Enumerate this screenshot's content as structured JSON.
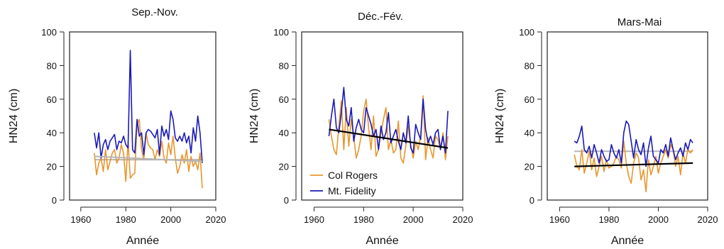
{
  "colors": {
    "col_rogers": "#e8962e",
    "mt_fidelity": "#1a1ab8",
    "trend": "#000000",
    "mean_line": "#b5b5b5"
  },
  "legend": {
    "items": [
      "Col Rogers",
      "Mt. Fidelity"
    ]
  },
  "chart_data": [
    {
      "type": "line",
      "title": "Sep.-Nov.",
      "xlabel": "Année",
      "ylabel": "HN24 (cm)",
      "xlim": [
        1955,
        2020
      ],
      "ylim": [
        0,
        100
      ],
      "xticks": [
        1960,
        1980,
        2000,
        2020
      ],
      "yticks": [
        0,
        20,
        40,
        60,
        80,
        100
      ],
      "series": [
        {
          "name": "Mt. Fidelity",
          "x": [
            1966,
            1967,
            1968,
            1969,
            1970,
            1971,
            1972,
            1973,
            1974,
            1975,
            1976,
            1977,
            1978,
            1979,
            1980,
            1981,
            1982,
            1983,
            1984,
            1985,
            1986,
            1987,
            1988,
            1989,
            1990,
            1991,
            1992,
            1993,
            1994,
            1995,
            1996,
            1997,
            1998,
            1999,
            2000,
            2001,
            2002,
            2003,
            2004,
            2005,
            2006,
            2007,
            2008,
            2009,
            2010,
            2011,
            2012,
            2013,
            2014
          ],
          "y": [
            40,
            31,
            40,
            25,
            33,
            36,
            30,
            35,
            37,
            39,
            30,
            35,
            34,
            38,
            33,
            31,
            89,
            30,
            28,
            48,
            38,
            40,
            27,
            40,
            42,
            41,
            39,
            37,
            42,
            27,
            44,
            38,
            42,
            36,
            53,
            48,
            37,
            35,
            38,
            35,
            40,
            34,
            38,
            28,
            43,
            35,
            50,
            40,
            22
          ]
        },
        {
          "name": "Col Rogers",
          "x": [
            1966,
            1967,
            1968,
            1969,
            1970,
            1971,
            1972,
            1973,
            1974,
            1975,
            1976,
            1977,
            1978,
            1979,
            1980,
            1981,
            1982,
            1983,
            1984,
            1985,
            1986,
            1987,
            1988,
            1989,
            1990,
            1991,
            1992,
            1993,
            1994,
            1995,
            1996,
            1997,
            1998,
            1999,
            2000,
            2001,
            2002,
            2003,
            2004,
            2005,
            2006,
            2007,
            2008,
            2009,
            2010,
            2011,
            2012,
            2013,
            2014
          ],
          "y": [
            28,
            15,
            22,
            25,
            17,
            30,
            18,
            23,
            28,
            30,
            22,
            25,
            33,
            28,
            11,
            35,
            13,
            15,
            16,
            45,
            48,
            30,
            24,
            40,
            33,
            31,
            30,
            24,
            30,
            26,
            35,
            25,
            22,
            34,
            27,
            38,
            25,
            16,
            20,
            27,
            22,
            30,
            17,
            26,
            20,
            23,
            18,
            28,
            7
          ]
        },
        {
          "name": "",
          "x": [
            1966,
            2014
          ],
          "y": [
            26,
            23
          ]
        },
        {
          "name": "",
          "x": [
            1966,
            2014
          ],
          "y": [
            24,
            24
          ]
        }
      ]
    },
    {
      "type": "line",
      "title": "Déc.-Fév.",
      "xlabel": "Année",
      "ylabel": "HN24 (cm)",
      "xlim": [
        1955,
        2020
      ],
      "ylim": [
        0,
        100
      ],
      "xticks": [
        1960,
        1980,
        2000,
        2020
      ],
      "yticks": [
        0,
        20,
        40,
        60,
        80,
        100
      ],
      "legend_position": "bottom-left",
      "series": [
        {
          "name": "Mt. Fidelity",
          "x": [
            1966,
            1967,
            1968,
            1969,
            1970,
            1971,
            1972,
            1973,
            1974,
            1975,
            1976,
            1977,
            1978,
            1979,
            1980,
            1981,
            1982,
            1983,
            1984,
            1985,
            1986,
            1987,
            1988,
            1989,
            1990,
            1991,
            1992,
            1993,
            1994,
            1995,
            1996,
            1997,
            1998,
            1999,
            2000,
            2001,
            2002,
            2003,
            2004,
            2005,
            2006,
            2007,
            2008,
            2009,
            2010,
            2011,
            2012,
            2013,
            2014
          ],
          "y": [
            38,
            50,
            60,
            43,
            40,
            52,
            67,
            48,
            44,
            55,
            35,
            43,
            48,
            42,
            40,
            55,
            50,
            45,
            38,
            42,
            30,
            44,
            36,
            40,
            52,
            34,
            38,
            42,
            35,
            30,
            40,
            34,
            50,
            31,
            28,
            45,
            40,
            36,
            60,
            42,
            34,
            38,
            33,
            40,
            42,
            30,
            38,
            28,
            53
          ]
        },
        {
          "name": "Col Rogers",
          "x": [
            1966,
            1967,
            1968,
            1969,
            1970,
            1971,
            1972,
            1973,
            1974,
            1975,
            1976,
            1977,
            1978,
            1979,
            1980,
            1981,
            1982,
            1983,
            1984,
            1985,
            1986,
            1987,
            1988,
            1989,
            1990,
            1991,
            1992,
            1993,
            1994,
            1995,
            1996,
            1997,
            1998,
            1999,
            2000,
            2001,
            2002,
            2003,
            2004,
            2005,
            2006,
            2007,
            2008,
            2009,
            2010,
            2011,
            2012,
            2013,
            2014
          ],
          "y": [
            48,
            38,
            30,
            27,
            44,
            59,
            30,
            55,
            32,
            48,
            38,
            25,
            30,
            38,
            53,
            60,
            43,
            30,
            50,
            26,
            30,
            40,
            48,
            55,
            30,
            36,
            28,
            30,
            47,
            25,
            22,
            32,
            44,
            33,
            25,
            35,
            30,
            38,
            62,
            24,
            37,
            30,
            25,
            38,
            36,
            30,
            40,
            24,
            38
          ]
        },
        {
          "name": "",
          "x": [
            1966,
            2014
          ],
          "y": [
            42,
            31
          ]
        }
      ]
    },
    {
      "type": "line",
      "title": "Mars-Mai",
      "xlabel": "Année",
      "ylabel": "HN24 (cm)",
      "xlim": [
        1955,
        2020
      ],
      "ylim": [
        0,
        100
      ],
      "xticks": [
        1960,
        1980,
        2000,
        2020
      ],
      "yticks": [
        0,
        20,
        40,
        60,
        80,
        100
      ],
      "series": [
        {
          "name": "Mt. Fidelity",
          "x": [
            1966,
            1967,
            1968,
            1969,
            1970,
            1971,
            1972,
            1973,
            1974,
            1975,
            1976,
            1977,
            1978,
            1979,
            1980,
            1981,
            1982,
            1983,
            1984,
            1985,
            1986,
            1987,
            1988,
            1989,
            1990,
            1991,
            1992,
            1993,
            1994,
            1995,
            1996,
            1997,
            1998,
            1999,
            2000,
            2001,
            2002,
            2003,
            2004,
            2005,
            2006,
            2007,
            2008,
            2009,
            2010,
            2011,
            2012,
            2013,
            2014
          ],
          "y": [
            35,
            34,
            38,
            44,
            30,
            28,
            32,
            25,
            33,
            28,
            22,
            30,
            26,
            23,
            24,
            33,
            28,
            25,
            30,
            22,
            40,
            47,
            45,
            35,
            25,
            36,
            30,
            27,
            34,
            20,
            31,
            38,
            26,
            24,
            22,
            30,
            28,
            33,
            26,
            37,
            30,
            24,
            28,
            31,
            26,
            34,
            30,
            36,
            34
          ]
        },
        {
          "name": "Col Rogers",
          "x": [
            1966,
            1967,
            1968,
            1969,
            1970,
            1971,
            1972,
            1973,
            1974,
            1975,
            1976,
            1977,
            1978,
            1979,
            1980,
            1981,
            1982,
            1983,
            1984,
            1985,
            1986,
            1987,
            1988,
            1989,
            1990,
            1991,
            1992,
            1993,
            1994,
            1995,
            1996,
            1997,
            1998,
            1999,
            2000,
            2001,
            2002,
            2003,
            2004,
            2005,
            2006,
            2007,
            2008,
            2009,
            2010,
            2011,
            2012,
            2013,
            2014
          ],
          "y": [
            27,
            20,
            18,
            30,
            16,
            22,
            29,
            18,
            25,
            14,
            20,
            26,
            17,
            24,
            19,
            20,
            22,
            26,
            24,
            19,
            35,
            22,
            14,
            10,
            22,
            28,
            25,
            12,
            18,
            5,
            24,
            15,
            20,
            26,
            16,
            22,
            26,
            30,
            25,
            33,
            30,
            20,
            26,
            15,
            28,
            22,
            30,
            28,
            30
          ]
        },
        {
          "name": "",
          "x": [
            1966,
            2014
          ],
          "y": [
            20,
            22
          ]
        },
        {
          "name": "",
          "x": [
            1966,
            2014
          ],
          "y": [
            29,
            29
          ]
        }
      ]
    }
  ]
}
